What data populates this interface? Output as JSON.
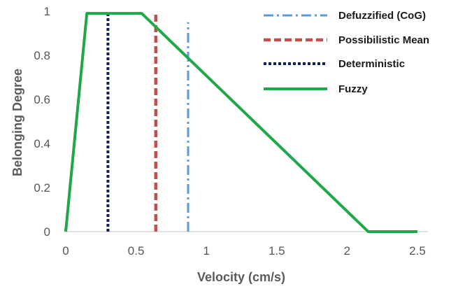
{
  "chart_data": {
    "type": "line",
    "xlabel": "Velocity (cm/s)",
    "ylabel": "Belonging Degree",
    "xlim": [
      0,
      2.5
    ],
    "ylim": [
      0,
      1
    ],
    "x_ticks": [
      "0",
      "0.5",
      "1",
      "1.5",
      "2",
      "2.5"
    ],
    "y_ticks": [
      "0",
      "0.2",
      "0.4",
      "0.6",
      "0.8",
      "1"
    ],
    "grid": false,
    "legend_position": "top-right",
    "series": [
      {
        "name": "Defuzzified (CoG)",
        "style": "dash-dot",
        "color": "#5B9BD5",
        "x": [
          0.87,
          0.87
        ],
        "y": [
          0,
          0.95
        ]
      },
      {
        "name": "Possibilistic Mean",
        "style": "dashed",
        "color": "#C0504D",
        "x": [
          0.64,
          0.64
        ],
        "y": [
          0,
          1
        ]
      },
      {
        "name": "Deterministic",
        "style": "dotted",
        "color": "#0F1E5A",
        "x": [
          0.3,
          0.3
        ],
        "y": [
          0,
          1
        ]
      },
      {
        "name": "Fuzzy",
        "style": "solid",
        "color": "#1FA84A",
        "x": [
          0,
          0.15,
          0.54,
          2.15,
          2.5
        ],
        "y": [
          0,
          0.99,
          0.99,
          0,
          0
        ]
      }
    ]
  }
}
